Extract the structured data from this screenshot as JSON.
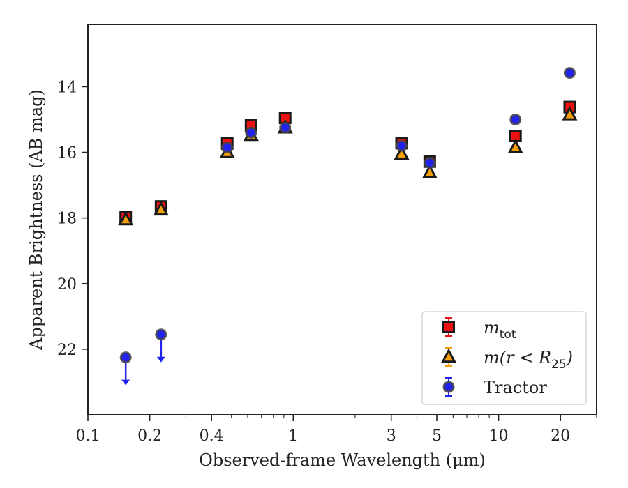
{
  "chart_data": {
    "type": "scatter",
    "xlabel": "Observed-frame Wavelength (μm)",
    "ylabel": "Apparent Brightness (AB mag)",
    "xscale": "log",
    "yinverted": true,
    "xlim": [
      0.1,
      30
    ],
    "ylim": [
      24.0,
      12.1
    ],
    "xticks": [
      {
        "value": 0.1,
        "label": "0.1"
      },
      {
        "value": 0.2,
        "label": "0.2"
      },
      {
        "value": 0.4,
        "label": "0.4"
      },
      {
        "value": 1,
        "label": "1"
      },
      {
        "value": 3,
        "label": "3"
      },
      {
        "value": 5,
        "label": "5"
      },
      {
        "value": 10,
        "label": "10"
      },
      {
        "value": 20,
        "label": "20"
      }
    ],
    "yticks": [
      {
        "value": 14,
        "label": "14"
      },
      {
        "value": 16,
        "label": "16"
      },
      {
        "value": 18,
        "label": "18"
      },
      {
        "value": 20,
        "label": "20"
      },
      {
        "value": 22,
        "label": "22"
      }
    ],
    "grid": false,
    "legend_position": "bottom-right",
    "series": [
      {
        "name_prefix": "m",
        "name_sub": "tot",
        "marker": "square",
        "color": "#ee1111",
        "x": [
          0.1528,
          0.2271,
          0.477,
          0.6231,
          0.9134,
          3.368,
          4.618,
          12.08,
          22.19
        ],
        "y": [
          17.98,
          17.65,
          15.73,
          15.18,
          14.95,
          15.72,
          16.28,
          15.5,
          14.62
        ]
      },
      {
        "name_prefix": "m(r < R",
        "name_sub": "25",
        "name_suffix": ")",
        "marker": "triangle",
        "color": "#f5a00a",
        "x": [
          0.1528,
          0.2271,
          0.477,
          0.6231,
          0.9134,
          3.368,
          4.618,
          12.08,
          22.19
        ],
        "y": [
          18.05,
          17.75,
          16.0,
          15.48,
          15.25,
          16.05,
          16.62,
          15.85,
          14.85
        ]
      },
      {
        "name": "Tractor",
        "marker": "circle",
        "color": "#2222ee",
        "x": [
          0.1528,
          0.2271,
          0.477,
          0.6231,
          0.9134,
          3.368,
          4.618,
          12.08,
          22.19
        ],
        "y": [
          22.25,
          21.55,
          15.85,
          15.4,
          15.25,
          15.8,
          16.32,
          15.0,
          13.58
        ],
        "upper_limit": [
          true,
          true,
          false,
          false,
          false,
          false,
          false,
          false,
          false
        ]
      }
    ]
  }
}
